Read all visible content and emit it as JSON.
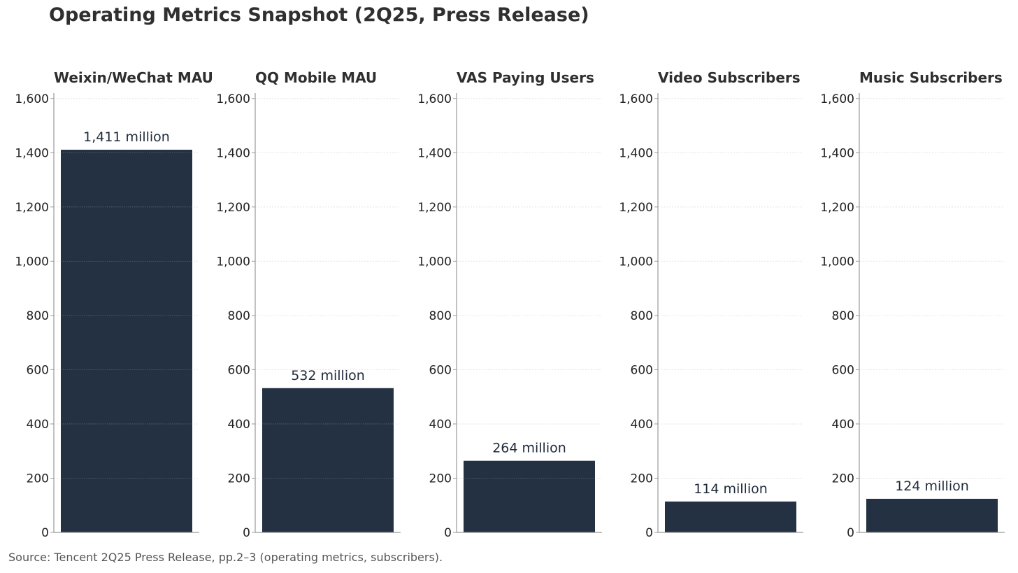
{
  "title": "Operating Metrics Snapshot (2Q25, Press Release)",
  "source": "Source: Tencent 2Q25 Press Release, pp.2–3 (operating metrics, subscribers).",
  "colors": {
    "bar": "#233142",
    "label": "#1f2a3a",
    "axis": "#999999",
    "grid": "#e3e3e3",
    "text": "#2f2f2f"
  },
  "chart_data": [
    {
      "type": "bar",
      "title": "Weixin/WeChat MAU",
      "categories": [
        ""
      ],
      "values": [
        1411
      ],
      "data_label": "1,411 million",
      "ylim": [
        0,
        1620
      ],
      "yticks": [
        0,
        200,
        400,
        600,
        800,
        1000,
        1200,
        1400,
        1600
      ],
      "ytick_labels": [
        "0",
        "200",
        "400",
        "600",
        "800",
        "1,000",
        "1,200",
        "1,400",
        "1,600"
      ],
      "grid": true
    },
    {
      "type": "bar",
      "title": "QQ Mobile MAU",
      "categories": [
        ""
      ],
      "values": [
        532
      ],
      "data_label": "532 million",
      "ylim": [
        0,
        1620
      ],
      "yticks": [
        0,
        200,
        400,
        600,
        800,
        1000,
        1200,
        1400,
        1600
      ],
      "ytick_labels": [
        "0",
        "200",
        "400",
        "600",
        "800",
        "1,000",
        "1,200",
        "1,400",
        "1,600"
      ],
      "grid": true
    },
    {
      "type": "bar",
      "title": "VAS Paying Users",
      "categories": [
        ""
      ],
      "values": [
        264
      ],
      "data_label": "264 million",
      "ylim": [
        0,
        1620
      ],
      "yticks": [
        0,
        200,
        400,
        600,
        800,
        1000,
        1200,
        1400,
        1600
      ],
      "ytick_labels": [
        "0",
        "200",
        "400",
        "600",
        "800",
        "1,000",
        "1,200",
        "1,400",
        "1,600"
      ],
      "grid": true
    },
    {
      "type": "bar",
      "title": "Video Subscribers",
      "categories": [
        ""
      ],
      "values": [
        114
      ],
      "data_label": "114 million",
      "ylim": [
        0,
        1620
      ],
      "yticks": [
        0,
        200,
        400,
        600,
        800,
        1000,
        1200,
        1400,
        1600
      ],
      "ytick_labels": [
        "0",
        "200",
        "400",
        "600",
        "800",
        "1,000",
        "1,200",
        "1,400",
        "1,600"
      ],
      "grid": true
    },
    {
      "type": "bar",
      "title": "Music Subscribers",
      "categories": [
        ""
      ],
      "values": [
        124
      ],
      "data_label": "124 million",
      "ylim": [
        0,
        1620
      ],
      "yticks": [
        0,
        200,
        400,
        600,
        800,
        1000,
        1200,
        1400,
        1600
      ],
      "ytick_labels": [
        "0",
        "200",
        "400",
        "600",
        "800",
        "1,000",
        "1,200",
        "1,400",
        "1,600"
      ],
      "grid": true
    }
  ]
}
